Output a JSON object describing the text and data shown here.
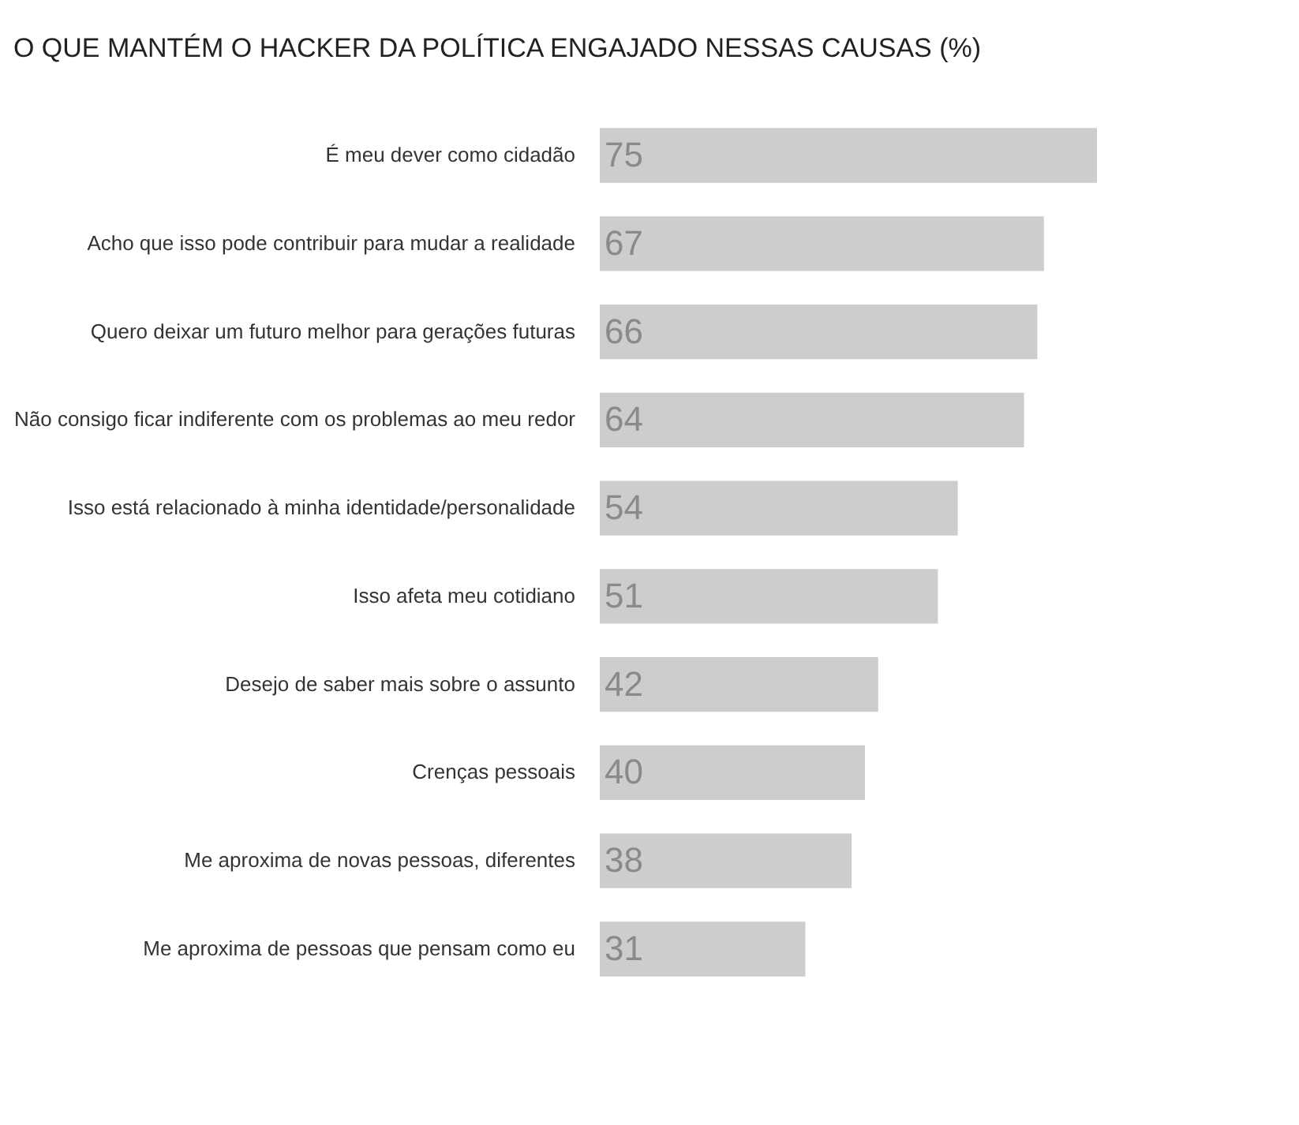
{
  "chart_data": {
    "type": "bar",
    "orientation": "horizontal",
    "title": "O QUE MANTÉM O HACKER DA POLÍTICA ENGAJADO NESSAS CAUSAS (%)",
    "categories": [
      "É meu dever como cidadão",
      "Acho que isso pode contribuir para mudar a realidade",
      "Quero deixar um futuro melhor para gerações futuras",
      "Não consigo ficar indiferente com os problemas ao meu redor",
      "Isso está relacionado à minha identidade/personalidade",
      "Isso afeta meu cotidiano",
      "Desejo de saber mais sobre o assunto",
      "Crenças pessoais",
      "Me aproxima de novas pessoas, diferentes",
      "Me aproxima de pessoas que pensam como eu"
    ],
    "values": [
      75,
      67,
      66,
      64,
      54,
      51,
      42,
      40,
      38,
      31
    ],
    "color": "#cdcdcd",
    "data_labels": true,
    "xlim": [
      0,
      75
    ],
    "tick_labels": "y",
    "grid": false
  }
}
